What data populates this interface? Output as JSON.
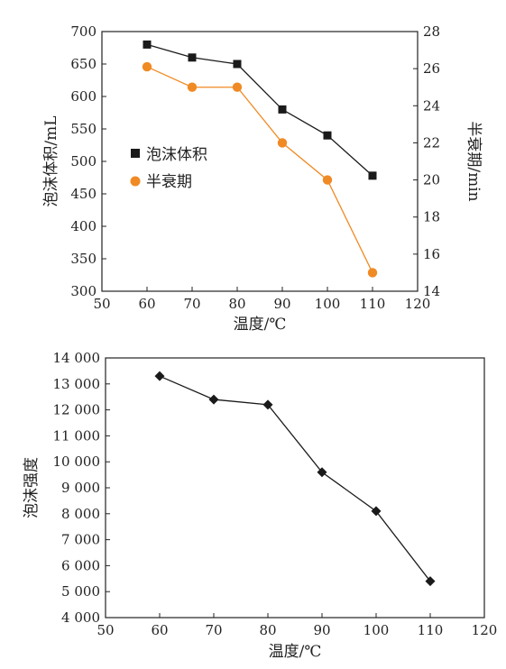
{
  "colors": {
    "volume": "#1a1a1a",
    "halflife": "#f08a24",
    "axis": "#222222"
  },
  "chart_data": [
    {
      "type": "line",
      "dual_y_axis": true,
      "x": [
        60,
        70,
        80,
        90,
        100,
        110
      ],
      "xlabel": "温度/℃",
      "xlim": [
        50,
        120
      ],
      "xticks": [
        "50",
        "60",
        "70",
        "80",
        "90",
        "100",
        "110",
        "120"
      ],
      "ylabel": "泡沫体积/mL",
      "ylim": [
        300,
        700
      ],
      "yticks": [
        "300",
        "350",
        "400",
        "450",
        "500",
        "550",
        "600",
        "650",
        "700"
      ],
      "y2label": "半衰期/min",
      "y2lim": [
        14,
        28
      ],
      "y2ticks": [
        "14",
        "16",
        "18",
        "20",
        "22",
        "24",
        "26",
        "28"
      ],
      "legend_position": "center-left",
      "series": [
        {
          "name": "泡沫体积",
          "axis": "left",
          "marker": "square",
          "color": "#1a1a1a",
          "values": [
            680,
            660,
            650,
            580,
            540,
            478
          ]
        },
        {
          "name": "半衰期",
          "axis": "right",
          "marker": "circle",
          "color": "#f08a24",
          "values": [
            26.1,
            25.0,
            25.0,
            22.0,
            20.0,
            15.0
          ]
        }
      ]
    },
    {
      "type": "line",
      "x": [
        60,
        70,
        80,
        90,
        100,
        110
      ],
      "xlabel": "温度/℃",
      "xlim": [
        50,
        120
      ],
      "xticks": [
        "50",
        "60",
        "70",
        "80",
        "90",
        "100",
        "110",
        "120"
      ],
      "ylabel": "泡沫强度",
      "ylim": [
        4000,
        14000
      ],
      "yticks": [
        "4 000",
        "5 000",
        "6 000",
        "7 000",
        "8 000",
        "9 000",
        "10 000",
        "11 000",
        "12 000",
        "13 000",
        "14 000"
      ],
      "series": [
        {
          "marker": "diamond",
          "color": "#1a1a1a",
          "values": [
            13300,
            12400,
            12200,
            9600,
            8100,
            5400
          ]
        }
      ]
    }
  ]
}
